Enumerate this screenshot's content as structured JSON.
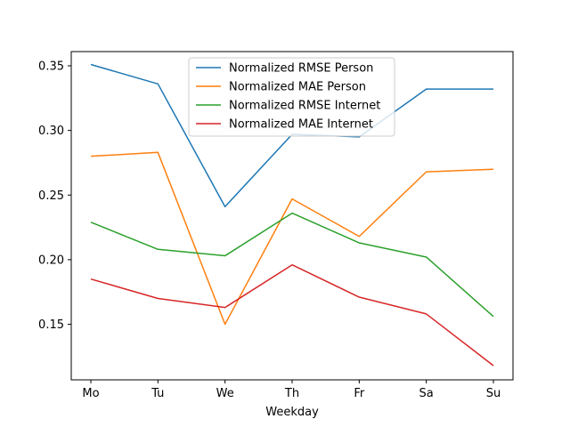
{
  "chart_data": {
    "type": "line",
    "categories": [
      "Mo",
      "Tu",
      "We",
      "Th",
      "Fr",
      "Sa",
      "Su"
    ],
    "xlabel": "Weekday",
    "ylabel": "",
    "title": "",
    "ylim": [
      0.107,
      0.361
    ],
    "yticks": [
      0.15,
      0.2,
      0.25,
      0.3,
      0.35
    ],
    "ytick_labels": [
      "0.15",
      "0.20",
      "0.25",
      "0.30",
      "0.35"
    ],
    "grid": false,
    "legend_position": "top-center",
    "series": [
      {
        "name": "Normalized RMSE Person",
        "color": "#1f77b4",
        "values": [
          0.351,
          0.336,
          0.241,
          0.297,
          0.295,
          0.332,
          0.332
        ]
      },
      {
        "name": "Normalized MAE Person",
        "color": "#ff7f0e",
        "values": [
          0.28,
          0.283,
          0.15,
          0.247,
          0.218,
          0.268,
          0.27
        ]
      },
      {
        "name": "Normalized RMSE Internet",
        "color": "#2ca02c",
        "values": [
          0.229,
          0.208,
          0.203,
          0.236,
          0.213,
          0.202,
          0.156
        ]
      },
      {
        "name": "Normalized MAE Internet",
        "color": "#d62728",
        "values": [
          0.185,
          0.17,
          0.163,
          0.196,
          0.171,
          0.158,
          0.118
        ]
      }
    ]
  }
}
